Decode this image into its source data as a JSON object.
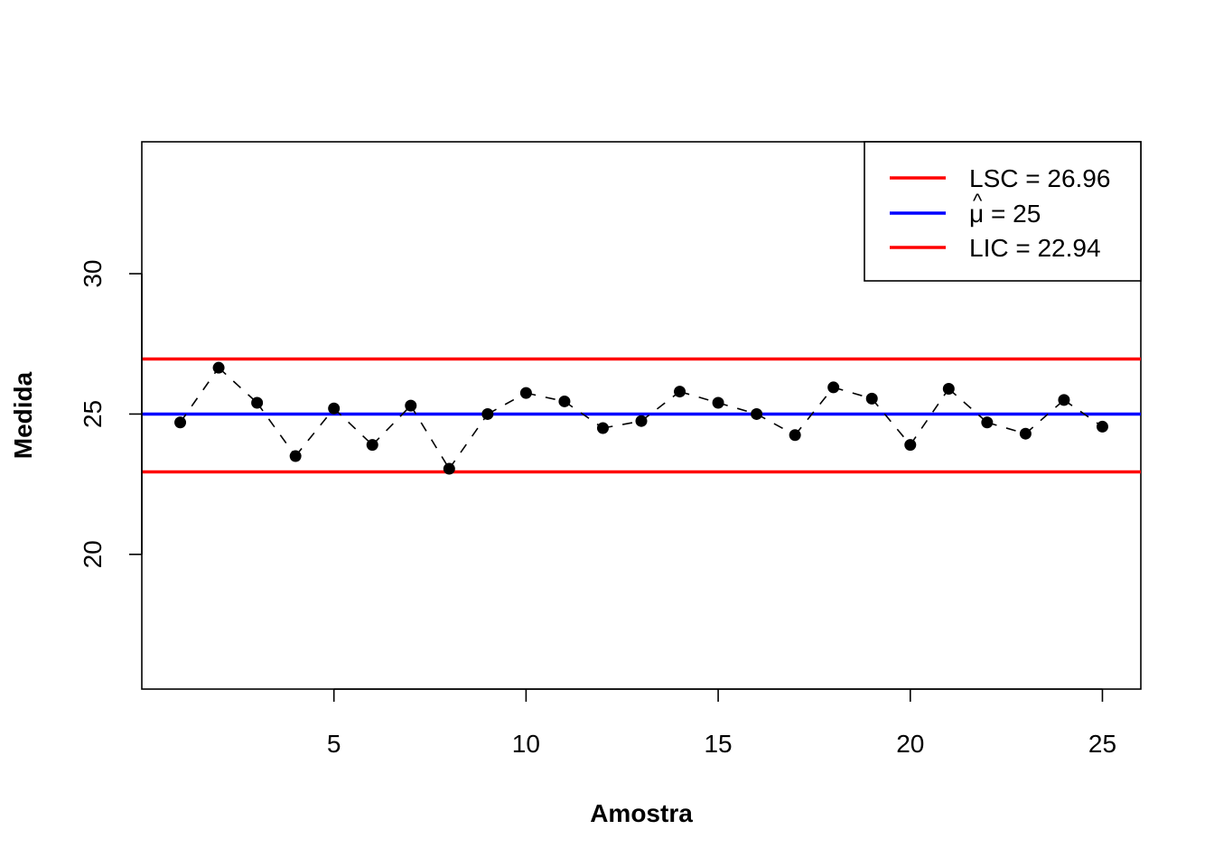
{
  "chart_data": {
    "type": "line",
    "xlabel": "Amostra",
    "ylabel": "Medida",
    "xlim": [
      0,
      26
    ],
    "ylim": [
      15.2,
      34.7
    ],
    "x_ticks": [
      5,
      10,
      15,
      20,
      25
    ],
    "y_ticks": [
      20,
      25,
      30
    ],
    "x": [
      1,
      2,
      3,
      4,
      5,
      6,
      7,
      8,
      9,
      10,
      11,
      12,
      13,
      14,
      15,
      16,
      17,
      18,
      19,
      20,
      21,
      22,
      23,
      24,
      25
    ],
    "values": [
      24.7,
      26.65,
      25.4,
      23.5,
      25.2,
      23.9,
      25.3,
      23.05,
      25.0,
      25.75,
      25.45,
      24.5,
      24.75,
      25.8,
      25.4,
      25.0,
      24.25,
      25.95,
      25.55,
      23.9,
      25.9,
      24.7,
      24.3,
      25.5,
      24.55
    ],
    "line_style": "dashed",
    "marker": "filled-circle",
    "grid": false,
    "legend_position": "top-right",
    "control_lines": [
      {
        "key": "lsc",
        "value": 26.96,
        "color": "#ff0000"
      },
      {
        "key": "center",
        "value": 25,
        "color": "#0000ff"
      },
      {
        "key": "lic",
        "value": 22.94,
        "color": "#ff0000"
      }
    ],
    "legend": {
      "lsc": "LSC = 26.96",
      "mu_symbol": "μ",
      "mu_hat": "^",
      "mu_value": "= 25",
      "lic": "LIC = 22.94"
    }
  }
}
